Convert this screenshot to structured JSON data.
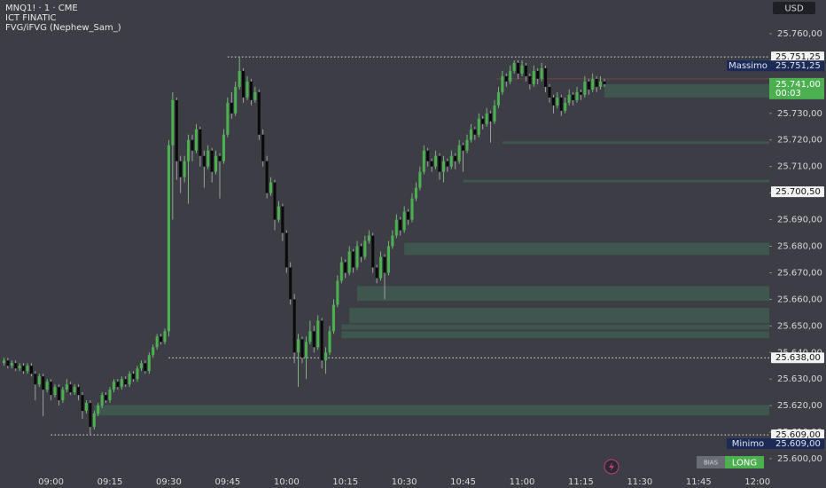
{
  "chart_data": {
    "type": "candlestick",
    "header": [
      "MNQ1! · 1 · CME",
      "ICT FINATIC",
      "FVG/iFVG (Nephew_Sam_)"
    ],
    "currency": "USD",
    "up_color": "#4caf50",
    "down_color": "#0a0a0a",
    "ylim": [
      25597,
      25767
    ],
    "yticks": [
      {
        "value": 25600,
        "label": "25.600,00"
      },
      {
        "value": 25610,
        "label": "25.610,00"
      },
      {
        "value": 25620,
        "label": "25.620,00"
      },
      {
        "value": 25630,
        "label": "25.630,00"
      },
      {
        "value": 25640,
        "label": "25.640,00"
      },
      {
        "value": 25650,
        "label": "25.650,00"
      },
      {
        "value": 25660,
        "label": "25.660,00"
      },
      {
        "value": 25670,
        "label": "25.670,00"
      },
      {
        "value": 25680,
        "label": "25.680,00"
      },
      {
        "value": 25690,
        "label": "25.690,00"
      },
      {
        "value": 25700,
        "label": "25.700,00"
      },
      {
        "value": 25710,
        "label": "25.710,00"
      },
      {
        "value": 25720,
        "label": "25.720,00"
      },
      {
        "value": 25730,
        "label": "25.730,00"
      },
      {
        "value": 25740,
        "label": "25.740,00"
      },
      {
        "value": 25750,
        "label": "25.750,00"
      },
      {
        "value": 25760,
        "label": "25.760,00"
      }
    ],
    "xlim": [
      "08:47",
      "12:03"
    ],
    "xticks": [
      "09:00",
      "09:15",
      "09:30",
      "09:45",
      "10:00",
      "10:15",
      "10:30",
      "10:45",
      "11:00",
      "11:15",
      "11:30",
      "11:45",
      "12:00"
    ],
    "x": [
      "08:48",
      "08:49",
      "08:50",
      "08:51",
      "08:52",
      "08:53",
      "08:54",
      "08:55",
      "08:56",
      "08:57",
      "08:58",
      "08:59",
      "09:00",
      "09:01",
      "09:02",
      "09:03",
      "09:04",
      "09:05",
      "09:06",
      "09:07",
      "09:08",
      "09:09",
      "09:10",
      "09:11",
      "09:12",
      "09:13",
      "09:14",
      "09:15",
      "09:16",
      "09:17",
      "09:18",
      "09:19",
      "09:20",
      "09:21",
      "09:22",
      "09:23",
      "09:24",
      "09:25",
      "09:26",
      "09:27",
      "09:28",
      "09:29",
      "09:30",
      "09:31",
      "09:32",
      "09:33",
      "09:34",
      "09:35",
      "09:36",
      "09:37",
      "09:38",
      "09:39",
      "09:40",
      "09:41",
      "09:42",
      "09:43",
      "09:44",
      "09:45",
      "09:46",
      "09:47",
      "09:48",
      "09:49",
      "09:50",
      "09:51",
      "09:52",
      "09:53",
      "09:54",
      "09:55",
      "09:56",
      "09:57",
      "09:58",
      "09:59",
      "10:00",
      "10:01",
      "10:02",
      "10:03",
      "10:04",
      "10:05",
      "10:06",
      "10:07",
      "10:08",
      "10:09",
      "10:10",
      "10:11",
      "10:12",
      "10:13",
      "10:14",
      "10:15",
      "10:16",
      "10:17",
      "10:18",
      "10:19",
      "10:20",
      "10:21",
      "10:22",
      "10:23",
      "10:24",
      "10:25",
      "10:26",
      "10:27",
      "10:28",
      "10:29",
      "10:30",
      "10:31",
      "10:32",
      "10:33",
      "10:34",
      "10:35",
      "10:36",
      "10:37",
      "10:38",
      "10:39",
      "10:40",
      "10:41",
      "10:42",
      "10:43",
      "10:44",
      "10:45",
      "10:46",
      "10:47",
      "10:48",
      "10:49",
      "10:50",
      "10:51",
      "10:52",
      "10:53",
      "10:54",
      "10:55",
      "10:56",
      "10:57",
      "10:58",
      "10:59",
      "11:00",
      "11:01",
      "11:02",
      "11:03",
      "11:04",
      "11:05",
      "11:06",
      "11:07",
      "11:08",
      "11:09",
      "11:10",
      "11:11",
      "11:12",
      "11:13",
      "11:14",
      "11:15",
      "11:16",
      "11:17",
      "11:18",
      "11:19",
      "11:20",
      "11:21"
    ],
    "ohlc": [
      [
        25636,
        25638,
        25635,
        25637
      ],
      [
        25637,
        25638,
        25634,
        25635
      ],
      [
        25635,
        25637,
        25634,
        25636
      ],
      [
        25636,
        25637,
        25633,
        25634
      ],
      [
        25634,
        25636,
        25633,
        25635
      ],
      [
        25635,
        25636,
        25632,
        25633
      ],
      [
        25633,
        25636,
        25632,
        25635
      ],
      [
        25635,
        25636,
        25631,
        25632
      ],
      [
        25632,
        25633,
        25622,
        25628
      ],
      [
        25628,
        25632,
        25627,
        25631
      ],
      [
        25631,
        25632,
        25616,
        25626
      ],
      [
        25626,
        25630,
        25625,
        25629
      ],
      [
        25629,
        25630,
        25622,
        25624
      ],
      [
        25624,
        25628,
        25623,
        25627
      ],
      [
        25627,
        25628,
        25620,
        25622
      ],
      [
        25622,
        25627,
        25621,
        25626
      ],
      [
        25626,
        25630,
        25625,
        25628
      ],
      [
        25628,
        25629,
        25624,
        25625
      ],
      [
        25625,
        25628,
        25624,
        25627
      ],
      [
        25627,
        25628,
        25622,
        25624
      ],
      [
        25624,
        25625,
        25615,
        25618
      ],
      [
        25618,
        25622,
        25617,
        25621
      ],
      [
        25621,
        25622,
        25609,
        25612
      ],
      [
        25612,
        25618,
        25611,
        25617
      ],
      [
        25617,
        25621,
        25616,
        25620
      ],
      [
        25620,
        25625,
        25619,
        25624
      ],
      [
        25624,
        25625,
        25621,
        25622
      ],
      [
        25622,
        25627,
        25621,
        25626
      ],
      [
        25626,
        25630,
        25625,
        25629
      ],
      [
        25629,
        25630,
        25626,
        25627
      ],
      [
        25627,
        25631,
        25626,
        25630
      ],
      [
        25630,
        25631,
        25627,
        25628
      ],
      [
        25628,
        25633,
        25627,
        25632
      ],
      [
        25632,
        25633,
        25629,
        25630
      ],
      [
        25630,
        25635,
        25629,
        25634
      ],
      [
        25634,
        25637,
        25633,
        25636
      ],
      [
        25636,
        25637,
        25632,
        25633
      ],
      [
        25633,
        25640,
        25632,
        25639
      ],
      [
        25639,
        25643,
        25638,
        25642
      ],
      [
        25642,
        25647,
        25641,
        25646
      ],
      [
        25646,
        25647,
        25643,
        25644
      ],
      [
        25644,
        25649,
        25643,
        25648
      ],
      [
        25648,
        25720,
        25646,
        25718
      ],
      [
        25718,
        25738,
        25690,
        25735
      ],
      [
        25735,
        25736,
        25705,
        25712
      ],
      [
        25712,
        25714,
        25700,
        25706
      ],
      [
        25706,
        25714,
        25704,
        25712
      ],
      [
        25712,
        25722,
        25696,
        25720
      ],
      [
        25720,
        25722,
        25712,
        25716
      ],
      [
        25716,
        25726,
        25715,
        25724
      ],
      [
        25724,
        25725,
        25710,
        25714
      ],
      [
        25714,
        25716,
        25702,
        25710
      ],
      [
        25710,
        25718,
        25709,
        25716
      ],
      [
        25716,
        25717,
        25704,
        25708
      ],
      [
        25708,
        25716,
        25707,
        25714
      ],
      [
        25714,
        25715,
        25698,
        25712
      ],
      [
        25712,
        25724,
        25711,
        25722
      ],
      [
        25722,
        25736,
        25721,
        25734
      ],
      [
        25734,
        25738,
        25728,
        25730
      ],
      [
        25730,
        25742,
        25729,
        25740
      ],
      [
        25740,
        25751.25,
        25739,
        25746
      ],
      [
        25746,
        25747,
        25734,
        25736
      ],
      [
        25736,
        25744,
        25735,
        25742
      ],
      [
        25742,
        25743,
        25733,
        25735
      ],
      [
        25735,
        25740,
        25734,
        25738
      ],
      [
        25738,
        25739,
        25720,
        25722
      ],
      [
        25722,
        25724,
        25710,
        25712
      ],
      [
        25712,
        25714,
        25698,
        25700
      ],
      [
        25700,
        25706,
        25699,
        25704
      ],
      [
        25704,
        25705,
        25686,
        25690
      ],
      [
        25690,
        25697,
        25689,
        25695
      ],
      [
        25695,
        25696,
        25682,
        25685
      ],
      [
        25685,
        25686,
        25670,
        25672
      ],
      [
        25672,
        25674,
        25658,
        25660
      ],
      [
        25660,
        25662,
        25636,
        25640
      ],
      [
        25640,
        25647,
        25627,
        25645
      ],
      [
        25645,
        25646,
        25636,
        25638
      ],
      [
        25638,
        25646,
        25630,
        25644
      ],
      [
        25644,
        25652,
        25643,
        25648
      ],
      [
        25648,
        25650,
        25640,
        25642
      ],
      [
        25642,
        25654,
        25641,
        25652
      ],
      [
        25652,
        25653,
        25634,
        25637
      ],
      [
        25637,
        25642,
        25632,
        25640
      ],
      [
        25640,
        25650,
        25639,
        25648
      ],
      [
        25648,
        25660,
        25647,
        25658
      ],
      [
        25658,
        25669,
        25657,
        25667
      ],
      [
        25667,
        25676,
        25666,
        25674
      ],
      [
        25674,
        25675,
        25668,
        25670
      ],
      [
        25670,
        25680,
        25669,
        25678
      ],
      [
        25678,
        25679,
        25670,
        25672
      ],
      [
        25672,
        25682,
        25671,
        25680
      ],
      [
        25680,
        25681,
        25674,
        25676
      ],
      [
        25676,
        25684,
        25675,
        25682
      ],
      [
        25682,
        25686,
        25681,
        25684
      ],
      [
        25684,
        25685,
        25670,
        25672
      ],
      [
        25672,
        25673,
        25666,
        25668
      ],
      [
        25668,
        25678,
        25667,
        25676
      ],
      [
        25676,
        25677,
        25660,
        25670
      ],
      [
        25670,
        25682,
        25669,
        25680
      ],
      [
        25680,
        25686,
        25679,
        25684
      ],
      [
        25684,
        25692,
        25683,
        25690
      ],
      [
        25690,
        25691,
        25684,
        25686
      ],
      [
        25686,
        25695,
        25685,
        25693
      ],
      [
        25693,
        25694,
        25688,
        25690
      ],
      [
        25690,
        25700,
        25689,
        25698
      ],
      [
        25698,
        25704,
        25697,
        25702
      ],
      [
        25702,
        25710,
        25701,
        25708
      ],
      [
        25708,
        25718,
        25707,
        25716
      ],
      [
        25716,
        25717,
        25710,
        25712
      ],
      [
        25712,
        25713,
        25708,
        25710
      ],
      [
        25710,
        25716,
        25709,
        25714
      ],
      [
        25714,
        25715,
        25705,
        25708
      ],
      [
        25708,
        25714,
        25704,
        25712
      ],
      [
        25712,
        25713,
        25708,
        25710
      ],
      [
        25710,
        25716,
        25709,
        25714
      ],
      [
        25714,
        25715,
        25709,
        25712
      ],
      [
        25712,
        25720,
        25711,
        25718
      ],
      [
        25718,
        25719,
        25708,
        25716
      ],
      [
        25716,
        25722,
        25715,
        25720
      ],
      [
        25720,
        25726,
        25719,
        25724
      ],
      [
        25724,
        25725,
        25720,
        25722
      ],
      [
        25722,
        25730,
        25721,
        25728
      ],
      [
        25728,
        25729,
        25724,
        25726
      ],
      [
        25726,
        25732,
        25725,
        25730
      ],
      [
        25730,
        25731,
        25719,
        25727
      ],
      [
        25727,
        25735,
        25726,
        25733
      ],
      [
        25733,
        25740,
        25732,
        25738
      ],
      [
        25738,
        25746,
        25737,
        25744
      ],
      [
        25744,
        25745,
        25740,
        25742
      ],
      [
        25742,
        25748,
        25741,
        25746
      ],
      [
        25746,
        25750,
        25745,
        25749
      ],
      [
        25749,
        25750,
        25743,
        25745
      ],
      [
        25745,
        25750,
        25744,
        25748
      ],
      [
        25748,
        25749,
        25742,
        25744
      ],
      [
        25744,
        25745,
        25739,
        25741
      ],
      [
        25741,
        25748,
        25740,
        25746
      ],
      [
        25746,
        25747,
        25741,
        25743
      ],
      [
        25743,
        25749,
        25742,
        25747
      ],
      [
        25747,
        25748,
        25738,
        25740
      ],
      [
        25740,
        25741,
        25734,
        25736
      ],
      [
        25736,
        25737,
        25730,
        25733
      ],
      [
        25733,
        25738,
        25732,
        25736
      ],
      [
        25736,
        25737,
        25729,
        25731
      ],
      [
        25731,
        25736,
        25730,
        25734
      ],
      [
        25734,
        25739,
        25733,
        25737
      ],
      [
        25737,
        25738,
        25733,
        25735
      ],
      [
        25735,
        25740,
        25734,
        25738
      ],
      [
        25738,
        25739,
        25735,
        25737
      ],
      [
        25737,
        25744,
        25736,
        25742
      ],
      [
        25742,
        25743,
        25737,
        25739
      ],
      [
        25739,
        25745,
        25738,
        25743
      ],
      [
        25743,
        25744,
        25738,
        25740
      ],
      [
        25740,
        25744,
        25739,
        25742
      ],
      [
        25742,
        25743,
        25740,
        25741
      ]
    ],
    "fvg_zones": [
      {
        "start": "11:21",
        "low": 25736,
        "high": 25741
      },
      {
        "start": "10:55",
        "low": 25718.5,
        "high": 25719.5
      },
      {
        "start": "10:45",
        "low": 25704,
        "high": 25705
      },
      {
        "start": "10:30",
        "low": 25676.7,
        "high": 25681.3
      },
      {
        "start": "10:18",
        "low": 25659.4,
        "high": 25665
      },
      {
        "start": "10:16",
        "low": 25651,
        "high": 25656.8
      },
      {
        "start": "10:14",
        "low": 25648.6,
        "high": 25650.6
      },
      {
        "start": "10:14",
        "low": 25645.4,
        "high": 25648
      },
      {
        "start": "09:11",
        "low": 25616.3,
        "high": 25620.2
      }
    ],
    "reference_line": 25743,
    "levels": [
      {
        "start": "09:45",
        "value": 25751.25,
        "label": "25.751,25"
      },
      {
        "start": "09:30",
        "value": 25638,
        "label": "25.638,00"
      },
      {
        "start": "09:00",
        "value": 25609,
        "label": "25.609,00"
      }
    ],
    "extremes": [
      {
        "name": "Massimo",
        "value": 25751.25,
        "label": "25.751,25"
      },
      {
        "name": "Minimo",
        "value": 25609,
        "label": "25.609,00"
      }
    ],
    "marker_label": {
      "value": 25700.5,
      "label": "25.700,50"
    },
    "last_price": {
      "value": 25741,
      "label": "25.741,00",
      "countdown": "00:03"
    },
    "bias": {
      "name": "BIAS",
      "value": "LONG"
    }
  }
}
